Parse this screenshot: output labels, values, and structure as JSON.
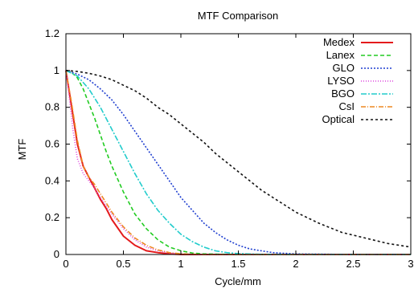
{
  "chart_data": {
    "type": "line",
    "title": "MTF Comparison",
    "xlabel": "Cycle/mm",
    "ylabel": "MTF",
    "xlim": [
      0,
      3
    ],
    "ylim": [
      0,
      1.2
    ],
    "x_ticks": [
      "0",
      "0.5",
      "1",
      "1.5",
      "2",
      "2.5",
      "3"
    ],
    "y_ticks": [
      "0",
      "0.2",
      "0.4",
      "0.6",
      "0.8",
      "1",
      "1.2"
    ],
    "grid": false,
    "legend_position": "top-right",
    "series": [
      {
        "name": "Medex",
        "color": "#e41a1c",
        "dash": "solid",
        "x": [
          0,
          0.05,
          0.1,
          0.15,
          0.2,
          0.25,
          0.3,
          0.35,
          0.4,
          0.5,
          0.6,
          0.7,
          0.8,
          0.9,
          1.0,
          1.2,
          1.5,
          2.0,
          3.0
        ],
        "y": [
          1,
          0.8,
          0.6,
          0.48,
          0.42,
          0.36,
          0.3,
          0.25,
          0.19,
          0.1,
          0.05,
          0.02,
          0.01,
          0.003,
          0,
          0,
          0,
          0,
          0
        ]
      },
      {
        "name": "Lanex",
        "color": "#22cc22",
        "dash": "5,3",
        "x": [
          0,
          0.05,
          0.1,
          0.15,
          0.2,
          0.25,
          0.3,
          0.35,
          0.4,
          0.5,
          0.6,
          0.7,
          0.8,
          0.9,
          1.0,
          1.1,
          1.2,
          1.5,
          2.0,
          3.0
        ],
        "y": [
          1,
          0.99,
          0.96,
          0.9,
          0.82,
          0.74,
          0.65,
          0.56,
          0.48,
          0.34,
          0.22,
          0.14,
          0.08,
          0.04,
          0.02,
          0.008,
          0.003,
          0,
          0,
          0
        ]
      },
      {
        "name": "GLO",
        "color": "#1f3fd0",
        "dash": "2,2",
        "x": [
          0,
          0.1,
          0.2,
          0.3,
          0.4,
          0.5,
          0.6,
          0.7,
          0.8,
          0.9,
          1.0,
          1.1,
          1.2,
          1.3,
          1.4,
          1.5,
          1.6,
          1.8,
          2.0,
          2.5,
          3.0
        ],
        "y": [
          1,
          0.98,
          0.95,
          0.9,
          0.84,
          0.76,
          0.67,
          0.58,
          0.49,
          0.4,
          0.31,
          0.24,
          0.17,
          0.12,
          0.08,
          0.05,
          0.03,
          0.01,
          0.003,
          0,
          0
        ]
      },
      {
        "name": "LYSO",
        "color": "#dd44dd",
        "dash": "1,2",
        "x": [
          0,
          0.03,
          0.06,
          0.1,
          0.15,
          0.2,
          0.25,
          0.3,
          0.4,
          0.5,
          0.6,
          0.7,
          0.8,
          0.9,
          1.0,
          1.2,
          1.5,
          2.0,
          3.0
        ],
        "y": [
          1,
          0.85,
          0.68,
          0.52,
          0.44,
          0.4,
          0.36,
          0.31,
          0.22,
          0.14,
          0.08,
          0.04,
          0.02,
          0.008,
          0.003,
          0,
          0,
          0,
          0
        ]
      },
      {
        "name": "BGO",
        "color": "#22cccc",
        "dash": "7,2,2,2",
        "x": [
          0,
          0.1,
          0.2,
          0.3,
          0.4,
          0.5,
          0.6,
          0.7,
          0.8,
          0.9,
          1.0,
          1.1,
          1.2,
          1.3,
          1.4,
          1.5,
          1.7,
          2.0,
          3.0
        ],
        "y": [
          1,
          0.97,
          0.9,
          0.8,
          0.68,
          0.56,
          0.44,
          0.33,
          0.24,
          0.17,
          0.11,
          0.07,
          0.04,
          0.02,
          0.01,
          0.005,
          0.001,
          0,
          0
        ]
      },
      {
        "name": "CsI",
        "color": "#ee8822",
        "dash": "6,2,1,2",
        "x": [
          0,
          0.05,
          0.1,
          0.15,
          0.2,
          0.25,
          0.3,
          0.35,
          0.4,
          0.5,
          0.6,
          0.7,
          0.8,
          0.9,
          1.0,
          1.2,
          1.5,
          2.0,
          3.0
        ],
        "y": [
          1,
          0.82,
          0.62,
          0.48,
          0.42,
          0.38,
          0.33,
          0.28,
          0.23,
          0.15,
          0.09,
          0.05,
          0.025,
          0.01,
          0.004,
          0,
          0,
          0,
          0
        ]
      },
      {
        "name": "Optical",
        "color": "#111111",
        "dash": "3,3",
        "x": [
          0,
          0.1,
          0.2,
          0.3,
          0.4,
          0.5,
          0.6,
          0.7,
          0.8,
          0.9,
          1.0,
          1.1,
          1.2,
          1.3,
          1.4,
          1.5,
          1.6,
          1.7,
          1.8,
          1.9,
          2.0,
          2.2,
          2.4,
          2.6,
          2.8,
          3.0
        ],
        "y": [
          1,
          0.995,
          0.985,
          0.97,
          0.95,
          0.92,
          0.89,
          0.85,
          0.8,
          0.76,
          0.71,
          0.66,
          0.61,
          0.55,
          0.5,
          0.45,
          0.4,
          0.35,
          0.31,
          0.27,
          0.23,
          0.17,
          0.12,
          0.09,
          0.06,
          0.04
        ]
      }
    ]
  }
}
